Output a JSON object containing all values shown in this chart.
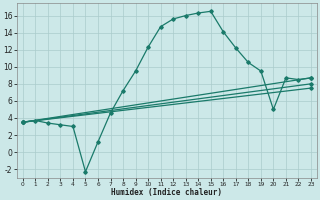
{
  "title": "",
  "xlabel": "Humidex (Indice chaleur)",
  "background_color": "#cce8e8",
  "grid_color": "#aacccc",
  "line_color": "#1a7a6a",
  "xlim": [
    -0.5,
    23.5
  ],
  "ylim": [
    -3,
    17.5
  ],
  "xticks": [
    0,
    1,
    2,
    3,
    4,
    5,
    6,
    7,
    8,
    9,
    10,
    11,
    12,
    13,
    14,
    15,
    16,
    17,
    18,
    19,
    20,
    21,
    22,
    23
  ],
  "yticks": [
    -2,
    0,
    2,
    4,
    6,
    8,
    10,
    12,
    14,
    16
  ],
  "series": [
    {
      "x": [
        0,
        1,
        2,
        3,
        4,
        5,
        6,
        7,
        8,
        9,
        10,
        11,
        12,
        13,
        14,
        15,
        16,
        17,
        18,
        19,
        20,
        21,
        22,
        23
      ],
      "y": [
        3.5,
        3.7,
        3.4,
        3.2,
        3.0,
        -2.3,
        1.2,
        4.6,
        7.2,
        9.5,
        12.3,
        14.7,
        15.6,
        16.0,
        16.3,
        16.5,
        14.1,
        12.2,
        10.5,
        9.5,
        5.0,
        8.7,
        8.5,
        8.7
      ]
    },
    {
      "x": [
        0,
        23
      ],
      "y": [
        3.5,
        8.7
      ]
    },
    {
      "x": [
        0,
        23
      ],
      "y": [
        3.5,
        8.0
      ]
    },
    {
      "x": [
        0,
        23
      ],
      "y": [
        3.5,
        7.5
      ]
    }
  ]
}
